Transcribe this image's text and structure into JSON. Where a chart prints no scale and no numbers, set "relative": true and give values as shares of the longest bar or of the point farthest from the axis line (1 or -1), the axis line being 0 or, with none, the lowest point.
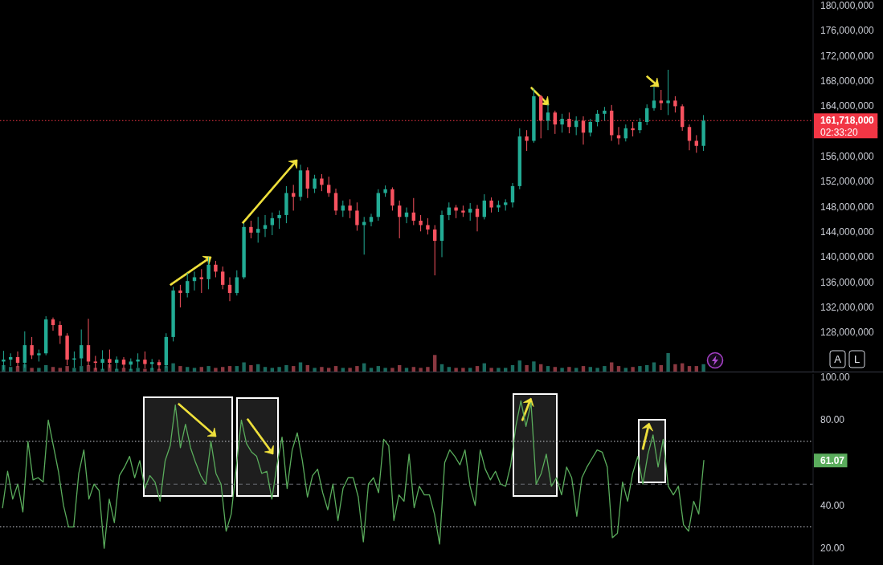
{
  "chart_data": [
    {
      "type": "candlestick",
      "categories": [
        null,
        null,
        null,
        null,
        null,
        null,
        null,
        null,
        null,
        null,
        null,
        null,
        null,
        null,
        null,
        null,
        null,
        null,
        null,
        null,
        null,
        null,
        null,
        null,
        null,
        null,
        null,
        null,
        null,
        null,
        null,
        null,
        null,
        null,
        null,
        null,
        null,
        null,
        null,
        null,
        null,
        null,
        null,
        null,
        null,
        null,
        null,
        null,
        null,
        null,
        null,
        null,
        null,
        null,
        null,
        null,
        null,
        null,
        null,
        null,
        null,
        null,
        null,
        null,
        null,
        null,
        null,
        null,
        null,
        null,
        null,
        null,
        null,
        null,
        null,
        null,
        null,
        null,
        null,
        null,
        null,
        null,
        null,
        null,
        null,
        null,
        null,
        null,
        null,
        null,
        null,
        null,
        null,
        null,
        null,
        null,
        null,
        null,
        null,
        null,
        null,
        null,
        null,
        null,
        null,
        null,
        null,
        null,
        null,
        null,
        null,
        null,
        null,
        null,
        null
      ],
      "ohlc": [
        [
          123400000,
          125100000,
          122100000,
          123700000
        ],
        [
          123700000,
          124700000,
          122700000,
          124100000
        ],
        [
          124100000,
          125000000,
          122500000,
          123200000
        ],
        [
          123200000,
          128200000,
          122400000,
          126000000
        ],
        [
          126000000,
          127300000,
          123800000,
          124400000
        ],
        [
          124400000,
          125300000,
          123400000,
          124700000
        ],
        [
          124700000,
          130600000,
          124400000,
          130100000
        ],
        [
          130100000,
          130400000,
          128300000,
          129200000
        ],
        [
          129200000,
          129800000,
          126200000,
          127500000
        ],
        [
          127500000,
          127900000,
          122800000,
          123700000
        ],
        [
          123700000,
          125000000,
          122400000,
          123900000
        ],
        [
          123900000,
          128500000,
          122700000,
          126000000
        ],
        [
          126000000,
          130200000,
          122700000,
          123400000
        ],
        [
          123400000,
          124300000,
          122100000,
          123200000
        ],
        [
          123200000,
          125200000,
          122100000,
          123800000
        ],
        [
          123800000,
          125300000,
          122400000,
          123200000
        ],
        [
          123200000,
          124200000,
          122100000,
          123700000
        ],
        [
          123700000,
          124100000,
          122300000,
          122900000
        ],
        [
          122900000,
          123900000,
          122000000,
          123400000
        ],
        [
          123400000,
          124700000,
          122400000,
          123700000
        ],
        [
          123700000,
          125000000,
          122300000,
          123000000
        ],
        [
          123000000,
          123800000,
          122100000,
          123300000
        ],
        [
          123300000,
          123700000,
          122100000,
          122800000
        ],
        [
          122800000,
          127900000,
          122400000,
          127300000
        ],
        [
          127300000,
          135300000,
          126600000,
          134700000
        ],
        [
          134700000,
          135600000,
          132000000,
          134300000
        ],
        [
          134300000,
          137500000,
          133600000,
          136200000
        ],
        [
          136200000,
          137700000,
          134700000,
          136800000
        ],
        [
          136800000,
          138100000,
          134300000,
          136500000
        ],
        [
          136500000,
          140000000,
          134900000,
          138800000
        ],
        [
          138800000,
          139400000,
          136800000,
          137700000
        ],
        [
          137700000,
          138500000,
          134900000,
          135600000
        ],
        [
          135600000,
          136800000,
          133000000,
          134300000
        ],
        [
          134300000,
          137900000,
          133900000,
          136800000
        ],
        [
          136800000,
          145400000,
          136500000,
          144800000
        ],
        [
          144800000,
          145800000,
          143000000,
          143900000
        ],
        [
          143900000,
          146400000,
          142300000,
          144500000
        ],
        [
          144500000,
          146700000,
          143200000,
          145100000
        ],
        [
          145100000,
          147100000,
          143500000,
          146200000
        ],
        [
          146200000,
          147400000,
          144500000,
          146700000
        ],
        [
          146700000,
          151300000,
          145400000,
          150200000
        ],
        [
          150200000,
          151500000,
          147400000,
          149600000
        ],
        [
          149600000,
          154700000,
          149000000,
          153800000
        ],
        [
          153800000,
          154300000,
          149400000,
          150900000
        ],
        [
          150900000,
          153100000,
          150200000,
          152500000
        ],
        [
          152500000,
          153200000,
          150500000,
          151500000
        ],
        [
          151500000,
          152800000,
          149600000,
          150200000
        ],
        [
          150200000,
          150900000,
          146700000,
          147400000
        ],
        [
          147400000,
          149000000,
          146400000,
          148200000
        ],
        [
          148200000,
          149200000,
          146200000,
          147400000
        ],
        [
          147400000,
          148700000,
          144200000,
          145100000
        ],
        [
          145100000,
          146400000,
          140400000,
          145600000
        ],
        [
          145600000,
          146900000,
          144900000,
          146400000
        ],
        [
          146400000,
          150800000,
          145800000,
          150200000
        ],
        [
          150200000,
          151400000,
          149600000,
          150800000
        ],
        [
          150800000,
          151100000,
          147400000,
          148200000
        ],
        [
          148200000,
          149000000,
          143000000,
          146400000
        ],
        [
          146400000,
          147900000,
          145400000,
          147100000
        ],
        [
          147100000,
          149400000,
          145100000,
          145800000
        ],
        [
          145800000,
          146700000,
          144100000,
          145100000
        ],
        [
          145100000,
          146200000,
          143600000,
          144400000
        ],
        [
          144400000,
          145100000,
          137100000,
          142600000
        ],
        [
          142600000,
          147400000,
          140000000,
          146700000
        ],
        [
          146700000,
          148700000,
          145900000,
          147900000
        ],
        [
          147900000,
          148300000,
          146200000,
          147400000
        ],
        [
          147400000,
          148200000,
          146400000,
          147100000
        ],
        [
          147100000,
          148600000,
          145800000,
          147700000
        ],
        [
          147700000,
          148300000,
          144100000,
          146400000
        ],
        [
          146400000,
          150000000,
          146000000,
          149000000
        ],
        [
          149000000,
          149500000,
          147100000,
          147900000
        ],
        [
          147900000,
          149000000,
          147200000,
          148300000
        ],
        [
          148300000,
          149200000,
          147400000,
          148700000
        ],
        [
          148700000,
          151800000,
          147900000,
          151300000
        ],
        [
          151300000,
          160500000,
          150800000,
          159200000
        ],
        [
          159200000,
          160200000,
          156900000,
          158500000
        ],
        [
          158500000,
          166800000,
          158200000,
          165600000
        ],
        [
          165600000,
          165800000,
          158900000,
          161700000
        ],
        [
          161700000,
          164300000,
          160200000,
          163000000
        ],
        [
          163000000,
          163300000,
          159600000,
          161100000
        ],
        [
          161100000,
          162800000,
          159800000,
          162000000
        ],
        [
          162000000,
          163000000,
          159700000,
          160700000
        ],
        [
          160700000,
          162400000,
          159400000,
          161700000
        ],
        [
          161700000,
          162400000,
          157900000,
          159800000
        ],
        [
          159800000,
          162000000,
          159200000,
          161500000
        ],
        [
          161500000,
          163400000,
          160800000,
          162800000
        ],
        [
          162800000,
          163900000,
          161700000,
          163300000
        ],
        [
          163300000,
          164200000,
          158500000,
          159400000
        ],
        [
          159400000,
          160700000,
          157900000,
          158900000
        ],
        [
          158900000,
          161100000,
          158400000,
          160500000
        ],
        [
          160500000,
          161500000,
          159200000,
          160200000
        ],
        [
          160200000,
          162100000,
          159700000,
          161500000
        ],
        [
          161500000,
          164300000,
          161000000,
          163700000
        ],
        [
          163700000,
          167100000,
          163300000,
          164900000
        ],
        [
          164900000,
          166600000,
          163400000,
          164500000
        ],
        [
          164500000,
          169800000,
          162600000,
          164900000
        ],
        [
          164900000,
          165600000,
          163000000,
          164000000
        ],
        [
          164000000,
          164300000,
          160100000,
          160700000
        ],
        [
          160700000,
          161100000,
          157000000,
          158500000
        ],
        [
          158500000,
          159400000,
          156600000,
          157700000
        ],
        [
          157700000,
          162600000,
          156900000,
          161718000
        ],
        null,
        null,
        null,
        null,
        null,
        null,
        null,
        null,
        null,
        null,
        null,
        null,
        null,
        null,
        null
      ],
      "colors": [
        "#22ab94",
        "#22ab94",
        "#f7525f",
        "#22ab94",
        "#f7525f",
        "#22ab94",
        "#22ab94",
        "#f7525f",
        "#f7525f",
        "#f7525f",
        "#22ab94",
        "#22ab94",
        "#f7525f",
        "#f7525f",
        "#22ab94",
        "#f7525f",
        "#22ab94",
        "#f7525f",
        "#22ab94",
        "#22ab94",
        "#f7525f",
        "#22ab94",
        "#f7525f",
        "#22ab94",
        "#22ab94",
        "#f7525f",
        "#22ab94",
        "#22ab94",
        "#f7525f",
        "#22ab94",
        "#f7525f",
        "#f7525f",
        "#f7525f",
        "#22ab94",
        "#22ab94",
        "#f7525f",
        "#22ab94",
        "#22ab94",
        "#22ab94",
        "#22ab94",
        "#22ab94",
        "#f7525f",
        "#22ab94",
        "#f7525f",
        "#22ab94",
        "#f7525f",
        "#f7525f",
        "#f7525f",
        "#22ab94",
        "#f7525f",
        "#f7525f",
        "#22ab94",
        "#22ab94",
        "#22ab94",
        "#22ab94",
        "#f7525f",
        "#f7525f",
        "#22ab94",
        "#f7525f",
        "#f7525f",
        "#f7525f",
        "#f7525f",
        "#22ab94",
        "#22ab94",
        "#f7525f",
        "#f7525f",
        "#22ab94",
        "#f7525f",
        "#22ab94",
        "#f7525f",
        "#22ab94",
        "#22ab94",
        "#22ab94",
        "#22ab94",
        "#f7525f",
        "#22ab94",
        "#f7525f",
        "#22ab94",
        "#f7525f",
        "#22ab94",
        "#f7525f",
        "#22ab94",
        "#f7525f",
        "#22ab94",
        "#22ab94",
        "#22ab94",
        "#f7525f",
        "#f7525f",
        "#22ab94",
        "#f7525f",
        "#22ab94",
        "#22ab94",
        "#22ab94",
        "#f7525f",
        "#22ab94",
        "#f7525f",
        "#f7525f",
        "#f7525f",
        "#f7525f",
        "#22ab94",
        null,
        null,
        null,
        null,
        null,
        null,
        null,
        null,
        null,
        null,
        null,
        null,
        null,
        null,
        null
      ],
      "ylim": [
        121800000,
        180900000
      ],
      "yticks": [
        {
          "value": 128000000,
          "label": "128,000,000"
        },
        {
          "value": 132000000,
          "label": "132,000,000"
        },
        {
          "value": 136000000,
          "label": "136,000,000"
        },
        {
          "value": 140000000,
          "label": "140,000,000"
        },
        {
          "value": 144000000,
          "label": "144,000,000"
        },
        {
          "value": 148000000,
          "label": "148,000,000"
        },
        {
          "value": 152000000,
          "label": "152,000,000"
        },
        {
          "value": 156000000,
          "label": "156,000,000"
        },
        {
          "value": 164000000,
          "label": "164,000,000"
        },
        {
          "value": 168000000,
          "label": "168,000,000"
        },
        {
          "value": 172000000,
          "label": "172,000,000"
        },
        {
          "value": 176000000,
          "label": "176,000,000"
        },
        {
          "value": 180000000,
          "label": "180,000,000"
        }
      ],
      "ref_lines": [
        {
          "axis": "y",
          "value": 161718000,
          "label": "161,718,000",
          "color": "#f23645",
          "line_style": "dotted"
        }
      ],
      "annotations": [
        "02:33:20",
        "A",
        "L"
      ]
    },
    {
      "type": "bar",
      "relative": true,
      "categories": [
        null,
        null,
        null,
        null,
        null,
        null,
        null,
        null,
        null,
        null,
        null,
        null,
        null,
        null,
        null,
        null,
        null,
        null,
        null,
        null,
        null,
        null,
        null,
        null,
        null,
        null,
        null,
        null,
        null,
        null,
        null,
        null,
        null,
        null,
        null,
        null,
        null,
        null,
        null,
        null,
        null,
        null,
        null,
        null,
        null,
        null,
        null,
        null,
        null,
        null,
        null,
        null,
        null,
        null,
        null,
        null,
        null,
        null,
        null,
        null,
        null,
        null,
        null,
        null,
        null,
        null,
        null,
        null,
        null,
        null,
        null,
        null,
        null,
        null,
        null,
        null,
        null,
        null,
        null,
        null,
        null,
        null,
        null,
        null,
        null,
        null,
        null,
        null,
        null,
        null,
        null,
        null,
        null,
        null,
        null,
        null,
        null,
        null,
        null,
        null,
        null,
        null,
        null,
        null,
        null,
        null,
        null,
        null,
        null,
        null,
        null,
        null,
        null,
        null,
        null
      ],
      "values": [
        0.35,
        0.25,
        0.3,
        0.4,
        0.2,
        0.2,
        0.35,
        0.25,
        0.2,
        0.3,
        0.2,
        0.3,
        0.35,
        0.2,
        0.15,
        0.4,
        0.15,
        0.2,
        0.15,
        0.2,
        0.15,
        0.2,
        0.15,
        0.3,
        0.45,
        0.3,
        0.25,
        0.2,
        0.25,
        0.3,
        0.2,
        0.25,
        0.3,
        0.3,
        0.5,
        0.35,
        0.4,
        0.25,
        0.2,
        0.25,
        0.35,
        0.3,
        0.5,
        0.35,
        0.2,
        0.25,
        0.2,
        0.3,
        0.2,
        0.2,
        0.3,
        0.45,
        0.2,
        0.3,
        0.2,
        0.2,
        0.35,
        0.2,
        0.25,
        0.2,
        0.25,
        0.9,
        0.4,
        0.25,
        0.2,
        0.2,
        0.2,
        0.3,
        0.45,
        0.2,
        0.2,
        0.2,
        0.35,
        0.6,
        0.35,
        0.55,
        0.4,
        0.3,
        0.25,
        0.2,
        0.25,
        0.2,
        0.3,
        0.25,
        0.2,
        0.3,
        0.5,
        0.3,
        0.2,
        0.25,
        0.3,
        0.35,
        0.5,
        0.35,
        1,
        0.4,
        0.45,
        0.3,
        0.3,
        0.4,
        null,
        null,
        null,
        null,
        null,
        null,
        null,
        null,
        null,
        null,
        null,
        null,
        null,
        null,
        null
      ],
      "colors": [
        "#1b6b5f",
        "#1b6b5f",
        "#8a3840",
        "#1b6b5f",
        "#8a3840",
        "#1b6b5f",
        "#1b6b5f",
        "#8a3840",
        "#8a3840",
        "#8a3840",
        "#1b6b5f",
        "#1b6b5f",
        "#8a3840",
        "#8a3840",
        "#1b6b5f",
        "#8a3840",
        "#1b6b5f",
        "#8a3840",
        "#1b6b5f",
        "#1b6b5f",
        "#8a3840",
        "#1b6b5f",
        "#8a3840",
        "#1b6b5f",
        "#1b6b5f",
        "#8a3840",
        "#1b6b5f",
        "#1b6b5f",
        "#8a3840",
        "#1b6b5f",
        "#8a3840",
        "#8a3840",
        "#8a3840",
        "#1b6b5f",
        "#1b6b5f",
        "#8a3840",
        "#1b6b5f",
        "#1b6b5f",
        "#1b6b5f",
        "#1b6b5f",
        "#1b6b5f",
        "#8a3840",
        "#1b6b5f",
        "#8a3840",
        "#1b6b5f",
        "#8a3840",
        "#8a3840",
        "#8a3840",
        "#1b6b5f",
        "#8a3840",
        "#8a3840",
        "#1b6b5f",
        "#1b6b5f",
        "#1b6b5f",
        "#1b6b5f",
        "#8a3840",
        "#8a3840",
        "#1b6b5f",
        "#8a3840",
        "#8a3840",
        "#8a3840",
        "#8a3840",
        "#1b6b5f",
        "#1b6b5f",
        "#8a3840",
        "#8a3840",
        "#1b6b5f",
        "#8a3840",
        "#1b6b5f",
        "#8a3840",
        "#1b6b5f",
        "#1b6b5f",
        "#1b6b5f",
        "#1b6b5f",
        "#8a3840",
        "#1b6b5f",
        "#8a3840",
        "#1b6b5f",
        "#8a3840",
        "#1b6b5f",
        "#8a3840",
        "#1b6b5f",
        "#8a3840",
        "#1b6b5f",
        "#1b6b5f",
        "#1b6b5f",
        "#8a3840",
        "#8a3840",
        "#1b6b5f",
        "#8a3840",
        "#1b6b5f",
        "#1b6b5f",
        "#1b6b5f",
        "#8a3840",
        "#1b6b5f",
        "#8a3840",
        "#8a3840",
        "#8a3840",
        "#8a3840",
        "#1b6b5f",
        null,
        null,
        null,
        null,
        null,
        null,
        null,
        null,
        null,
        null,
        null,
        null,
        null,
        null,
        null
      ]
    },
    {
      "type": "line",
      "categories": [
        null,
        null,
        null,
        null,
        null,
        null,
        null,
        null,
        null,
        null,
        null,
        null,
        null,
        null,
        null,
        null,
        null,
        null,
        null,
        null,
        null,
        null,
        null,
        null,
        null,
        null,
        null,
        null,
        null,
        null,
        null,
        null,
        null,
        null,
        null,
        null,
        null,
        null,
        null,
        null,
        null,
        null,
        null,
        null,
        null,
        null,
        null,
        null,
        null,
        null,
        null,
        null,
        null,
        null,
        null,
        null,
        null,
        null,
        null,
        null,
        null,
        null,
        null,
        null,
        null,
        null,
        null,
        null,
        null,
        null,
        null,
        null,
        null,
        null,
        null,
        null,
        null,
        null,
        null,
        null,
        null,
        null,
        null,
        null,
        null,
        null,
        null,
        null,
        null,
        null,
        null,
        null,
        null,
        null,
        null,
        null,
        null,
        null,
        null,
        null,
        null,
        null,
        null,
        null,
        null,
        null,
        null,
        null,
        null,
        null,
        null,
        null,
        null,
        null,
        null,
        null,
        null,
        null,
        null,
        null,
        null,
        null,
        null,
        null,
        null,
        null,
        null,
        null,
        null,
        null,
        null,
        null,
        null,
        null,
        null,
        null,
        null,
        null,
        null,
        null,
        null,
        null,
        null,
        null,
        null,
        null,
        null,
        null,
        null,
        null,
        null,
        null,
        null,
        null,
        null,
        null,
        null,
        null,
        null,
        null
      ],
      "series": [
        {
          "color": "#5aac5c",
          "values": [
            39,
            56,
            43,
            50,
            37,
            70,
            52,
            53,
            51,
            80,
            68,
            56,
            40,
            30,
            30,
            55,
            66,
            43,
            50,
            47,
            20,
            43,
            32,
            54,
            58,
            63,
            53,
            61,
            48,
            54,
            51,
            42,
            61,
            68,
            87,
            67,
            78,
            67,
            60,
            54,
            50,
            70,
            55,
            50,
            28,
            36,
            58,
            80,
            69,
            65,
            63,
            55,
            56,
            43,
            59,
            72,
            48,
            66,
            74,
            61,
            44,
            54,
            57,
            46,
            38,
            50,
            33,
            48,
            53,
            53,
            44,
            23,
            50,
            53,
            46,
            71,
            68,
            33,
            45,
            42,
            64,
            39,
            49,
            45,
            45,
            36,
            22,
            60,
            66,
            63,
            59,
            66,
            49,
            40,
            66,
            57,
            52,
            56,
            50,
            49,
            59,
            77,
            89,
            77,
            88,
            50,
            55,
            64,
            49,
            53,
            45,
            58,
            53,
            35,
            53,
            58,
            62,
            66,
            65,
            58,
            25,
            27,
            51,
            42,
            55,
            63,
            50,
            64,
            73,
            58,
            71,
            49,
            45,
            49,
            31,
            28,
            42,
            36,
            61.07,
            null,
            null,
            null,
            null,
            null,
            null,
            null,
            null,
            null,
            null,
            null,
            null,
            null,
            null,
            null,
            null,
            null,
            null,
            null,
            null,
            null
          ]
        }
      ],
      "ylim": [
        12.2,
        101.5
      ],
      "yticks": [
        {
          "value": 20,
          "label": "20.00"
        },
        {
          "value": 40,
          "label": "40.00"
        },
        {
          "value": 80,
          "label": "80.00"
        },
        {
          "value": 100,
          "label": "100.00"
        }
      ],
      "ref_lines": [
        {
          "axis": "y",
          "value": 70,
          "color": "#c8cbd3",
          "line_style": "dotted"
        },
        {
          "axis": "y",
          "value": 50,
          "color": "#6b6e76",
          "line_style": "dashed"
        },
        {
          "axis": "y",
          "value": 30,
          "color": "#c8cbd3",
          "line_style": "dotted"
        }
      ],
      "annotations": [
        "61.07"
      ]
    }
  ]
}
